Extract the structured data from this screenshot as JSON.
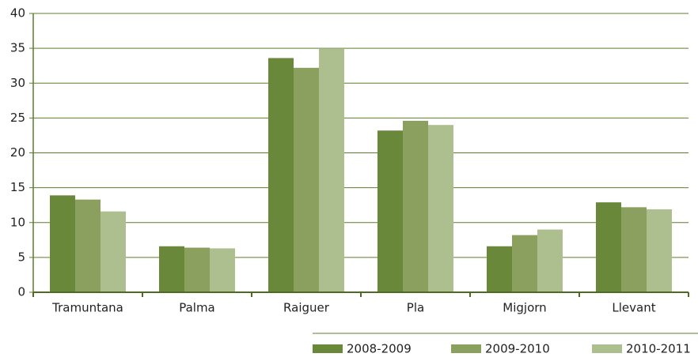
{
  "chart_data": {
    "type": "bar",
    "categories": [
      "Tramuntana",
      "Palma",
      "Raiguer",
      "Pla",
      "Migjorn",
      "Llevant"
    ],
    "series": [
      {
        "name": "2008-2009",
        "color": "#6a883a",
        "values": [
          13.9,
          6.6,
          33.6,
          23.2,
          6.6,
          12.9
        ]
      },
      {
        "name": "2009-2010",
        "color": "#8ba05f",
        "values": [
          13.3,
          6.4,
          32.2,
          24.6,
          8.2,
          12.2
        ]
      },
      {
        "name": "2010-2011",
        "color": "#adbf8e",
        "values": [
          11.6,
          6.3,
          34.9,
          24.0,
          9.0,
          11.9
        ]
      }
    ],
    "ylim": [
      0,
      40
    ],
    "yticks": [
      0,
      5,
      10,
      15,
      20,
      25,
      30,
      35,
      40
    ],
    "grid": true,
    "legend": "bottom"
  }
}
